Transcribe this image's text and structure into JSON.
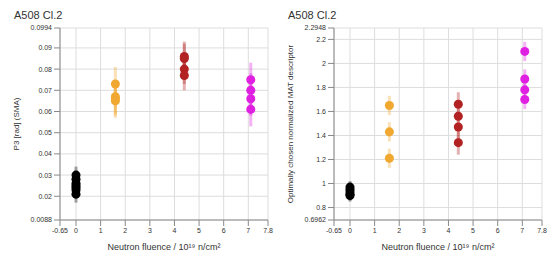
{
  "chart_data": [
    {
      "type": "scatter",
      "title": "A508 Cl.2",
      "x_label": "Neutron fluence / 10¹⁹ n/cm²",
      "y_label": "P3 [rad] (SMA)",
      "xlim": [
        -0.65,
        7.8
      ],
      "xticks": [
        -0.65,
        0,
        1,
        2,
        3,
        4,
        5,
        6,
        7,
        7.8
      ],
      "ylim": [
        0.0088,
        0.0994
      ],
      "yticks": [
        0.0088,
        0.02,
        0.03,
        0.04,
        0.05,
        0.06,
        0.07,
        0.08,
        0.09,
        0.0994
      ],
      "grid": true,
      "marker": "circle",
      "series": [
        {
          "color": "#000000",
          "x": [
            0,
            0,
            0,
            0,
            0,
            0,
            0
          ],
          "values": [
            0.021,
            0.023,
            0.024,
            0.025,
            0.026,
            0.028,
            0.03
          ],
          "errors": [
            0.004,
            0.004,
            0.004,
            0.004,
            0.004,
            0.004,
            0.004
          ]
        },
        {
          "color": "#f0a830",
          "x": [
            1.6,
            1.6,
            1.6,
            1.6
          ],
          "values": [
            0.073,
            0.067,
            0.066,
            0.065
          ],
          "errors": [
            0.008,
            0.008,
            0.008,
            0.008
          ]
        },
        {
          "color": "#b22222",
          "x": [
            4.4,
            4.4,
            4.4,
            4.4
          ],
          "values": [
            0.086,
            0.085,
            0.08,
            0.077
          ],
          "errors": [
            0.007,
            0.007,
            0.007,
            0.007
          ]
        },
        {
          "color": "#e020e0",
          "x": [
            7.1,
            7.1,
            7.1,
            7.1
          ],
          "values": [
            0.075,
            0.07,
            0.066,
            0.061
          ],
          "errors": [
            0.008,
            0.008,
            0.008,
            0.008
          ]
        }
      ]
    },
    {
      "type": "scatter",
      "title": "A508 Cl.2",
      "x_label": "Neutron fluence / 10¹⁹ n/cm²",
      "y_label": "Optimally chosen normalized MAT descriptor",
      "xlim": [
        -0.65,
        7.8
      ],
      "xticks": [
        -0.65,
        0,
        1,
        2,
        3,
        4,
        5,
        6,
        7,
        7.8
      ],
      "ylim": [
        0.6962,
        2.2948
      ],
      "yticks": [
        0.6962,
        0.8,
        1,
        1.2,
        1.4,
        1.6,
        1.8,
        2,
        2.2,
        2.2948
      ],
      "grid": true,
      "marker": "circle",
      "series": [
        {
          "color": "#000000",
          "x": [
            0,
            0,
            0,
            0,
            0
          ],
          "values": [
            0.97,
            0.95,
            0.93,
            0.91,
            0.9
          ],
          "errors": [
            0.05,
            0.05,
            0.05,
            0.05,
            0.05
          ]
        },
        {
          "color": "#f0a830",
          "x": [
            1.6,
            1.6,
            1.6
          ],
          "values": [
            1.65,
            1.43,
            1.21
          ],
          "errors": [
            0.08,
            0.08,
            0.08
          ]
        },
        {
          "color": "#b22222",
          "x": [
            4.4,
            4.4,
            4.4,
            4.4
          ],
          "values": [
            1.66,
            1.56,
            1.47,
            1.34
          ],
          "errors": [
            0.1,
            0.1,
            0.1,
            0.1
          ]
        },
        {
          "color": "#e020e0",
          "x": [
            7.1,
            7.1,
            7.1,
            7.1
          ],
          "values": [
            2.1,
            1.87,
            1.78,
            1.7
          ],
          "errors": [
            0.08,
            0.08,
            0.08,
            0.08
          ]
        }
      ]
    }
  ]
}
